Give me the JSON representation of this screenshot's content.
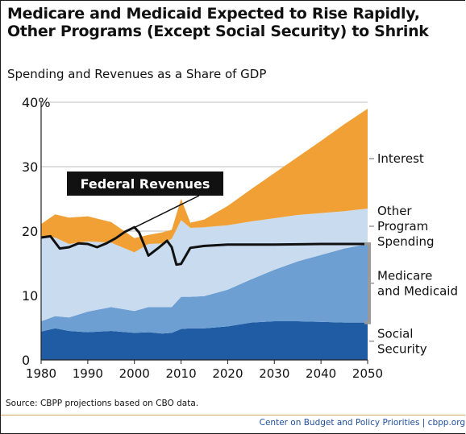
{
  "title": "Medicare and Medicaid Expected to Rise Rapidly, Other Programs (Except Social Security) to Shrink",
  "title_lines": [
    "Medicare and Medicaid Expected to Rise Rapidly,",
    "Other Programs (Except Social Security) to Shrink"
  ],
  "subtitle": "Spending and Revenues as a Share of GDP",
  "source": "Source: CBPP projections based on CBO data.",
  "footer": "Center on Budget and Policy Priorities | cbpp.org",
  "chart_data": {
    "type": "area",
    "x_range": [
      1980,
      2050
    ],
    "ylim": [
      0,
      40
    ],
    "y_ticks": [
      "0",
      "10",
      "20",
      "30",
      "40%"
    ],
    "y_tick_values": [
      0,
      10,
      20,
      30,
      40
    ],
    "x_ticks": [
      "1980",
      "1990",
      "2000",
      "2010",
      "2020",
      "2030",
      "2040",
      "2050"
    ],
    "x_tick_values": [
      1980,
      1990,
      2000,
      2010,
      2020,
      2030,
      2040,
      2050
    ],
    "grid": true,
    "colors": {
      "social_security": "#1f5ca3",
      "medicare_medicaid": "#6d9fd2",
      "other_programs": "#c9dbee",
      "interest": "#f0a035",
      "revenues_line": "#111111",
      "label_box": "#111111",
      "label_text": "#ffffff",
      "bracket": "#9a9a9a"
    },
    "stacked_series": [
      {
        "name": "Social Security",
        "label_lines": [
          "Social",
          "Security"
        ],
        "x": [
          1980,
          1983,
          1986,
          1990,
          1995,
          2000,
          2003,
          2006,
          2008,
          2010,
          2012,
          2015,
          2020,
          2025,
          2030,
          2035,
          2040,
          2045,
          2050
        ],
        "values": [
          4.4,
          4.9,
          4.5,
          4.3,
          4.5,
          4.2,
          4.3,
          4.1,
          4.2,
          4.8,
          4.9,
          4.9,
          5.2,
          5.8,
          6.0,
          6.0,
          5.9,
          5.8,
          5.8
        ]
      },
      {
        "name": "Medicare and Medicaid",
        "label_lines": [
          "Medicare",
          "and Medicaid"
        ],
        "x": [
          1980,
          1983,
          1986,
          1990,
          1995,
          2000,
          2003,
          2006,
          2008,
          2010,
          2012,
          2015,
          2020,
          2025,
          2030,
          2035,
          2040,
          2045,
          2050
        ],
        "values": [
          1.6,
          1.9,
          2.1,
          3.2,
          3.7,
          3.4,
          3.9,
          4.1,
          4.0,
          5.0,
          4.9,
          5.0,
          5.7,
          6.7,
          8.0,
          9.3,
          10.4,
          11.5,
          12.2
        ]
      },
      {
        "name": "Other Program Spending",
        "label_lines": [
          "Other",
          "Program",
          "Spending"
        ],
        "x": [
          1980,
          1983,
          1986,
          1990,
          1995,
          2000,
          2003,
          2006,
          2008,
          2010,
          2012,
          2015,
          2020,
          2025,
          2030,
          2035,
          2040,
          2045,
          2050
        ],
        "values": [
          13.0,
          12.2,
          11.4,
          10.9,
          10.0,
          9.1,
          9.8,
          9.9,
          10.6,
          11.9,
          10.7,
          10.7,
          10.0,
          9.0,
          8.0,
          7.2,
          6.5,
          5.8,
          5.5
        ]
      },
      {
        "name": "Interest",
        "label_lines": [
          "Interest"
        ],
        "x": [
          1980,
          1983,
          1986,
          1990,
          1995,
          2000,
          2003,
          2006,
          2008,
          2010,
          2012,
          2015,
          2020,
          2025,
          2030,
          2035,
          2040,
          2045,
          2050
        ],
        "values": [
          2.1,
          3.6,
          4.1,
          3.9,
          3.2,
          2.2,
          1.4,
          1.7,
          1.4,
          3.3,
          0.8,
          1.2,
          3.0,
          5.0,
          7.0,
          9.0,
          11.2,
          13.5,
          15.5
        ]
      }
    ],
    "line_series": {
      "name": "Federal Revenues",
      "x": [
        1980,
        1982,
        1984,
        1986,
        1988,
        1990,
        1992,
        1994,
        1996,
        1998,
        2000,
        2001,
        2003,
        2005,
        2007,
        2008,
        2009,
        2010,
        2012,
        2015,
        2020,
        2030,
        2040,
        2050
      ],
      "values": [
        19.0,
        19.2,
        17.3,
        17.5,
        18.1,
        18.0,
        17.5,
        18.1,
        18.9,
        19.9,
        20.6,
        19.8,
        16.2,
        17.3,
        18.5,
        17.5,
        14.8,
        14.9,
        17.4,
        17.7,
        17.9,
        17.9,
        18.0,
        18.0
      ]
    }
  }
}
